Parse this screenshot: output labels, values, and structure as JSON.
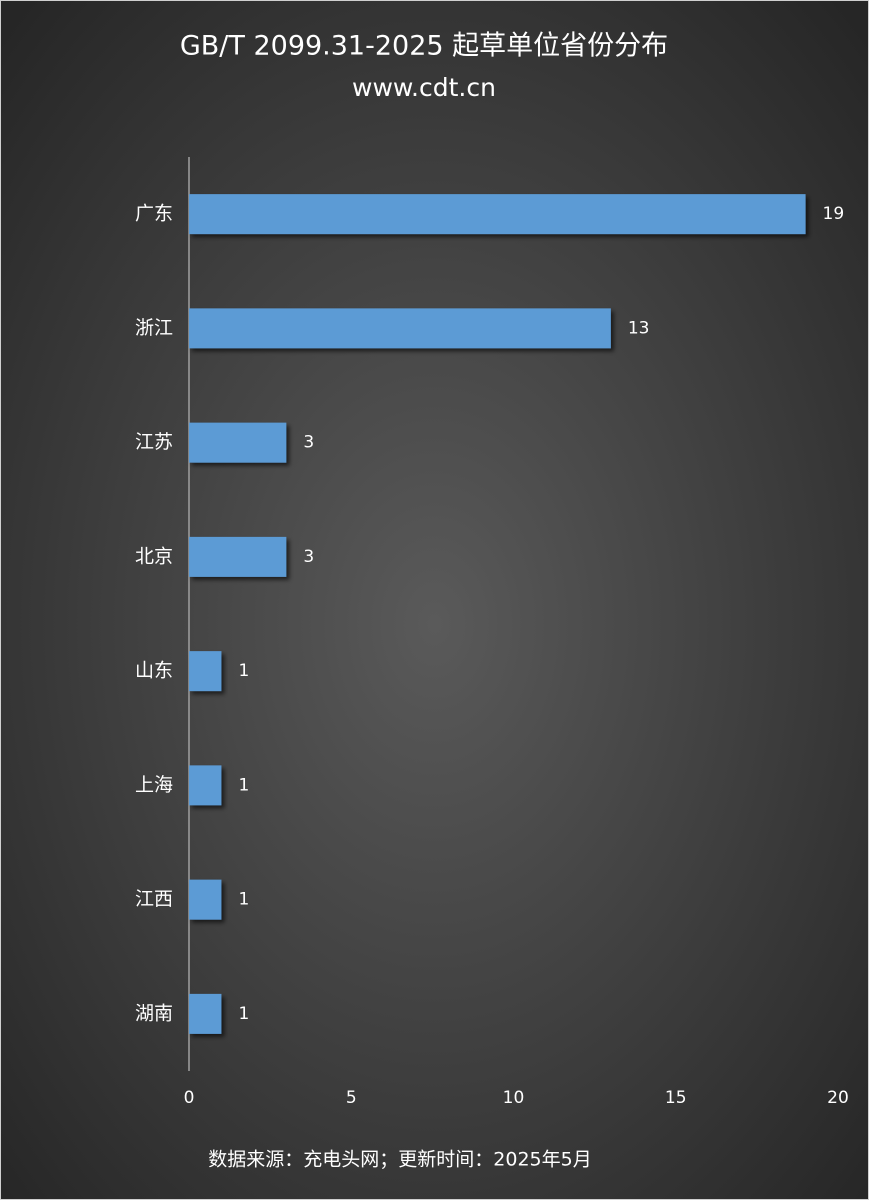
{
  "chart_data": {
    "type": "bar",
    "orientation": "horizontal",
    "title": "GB/T 2099.31-2025 起草单位省份分布",
    "subtitle": "www.cdt.cn",
    "footnote": "数据来源：充电头网；更新时间：2025年5月",
    "categories": [
      "广东",
      "浙江",
      "江苏",
      "北京",
      "山东",
      "上海",
      "江西",
      "湖南"
    ],
    "values": [
      19,
      13,
      3,
      3,
      1,
      1,
      1,
      1
    ],
    "color": "#5b9bd5",
    "xlim": [
      0,
      20
    ],
    "xticks": [
      0,
      5,
      10,
      15,
      20
    ],
    "grid": false
  }
}
